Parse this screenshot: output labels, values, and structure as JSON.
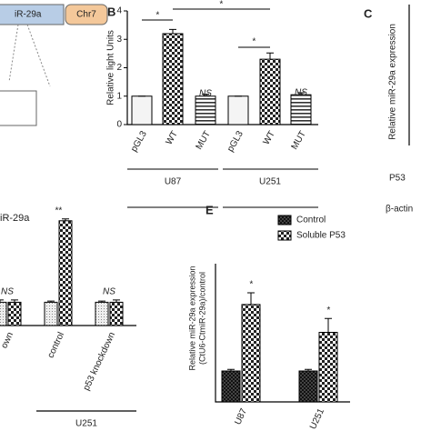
{
  "fragments": {
    "a_box": "iR-29a",
    "a_chr": "Chr7",
    "c_label": "C",
    "c_ylabel": "Relative miR-29a expression",
    "c_p53": "P53",
    "c_actin": "β-actin",
    "d_title": "iR-29a",
    "d_group": "U251"
  },
  "chart_data": [
    {
      "type": "bar",
      "label": "B",
      "y_label": "Relative light Units",
      "categories": [
        "pGL3",
        "WT",
        "MUT",
        "pGL3",
        "WT",
        "MUT"
      ],
      "values": [
        1,
        3.2,
        1.0,
        1,
        2.3,
        1.05
      ],
      "errors": [
        0,
        0.15,
        0.07,
        0,
        0.22,
        0.07
      ],
      "patterns": [
        "plain",
        "checker",
        "stripe",
        "plain",
        "checker",
        "stripe"
      ],
      "groups": [
        "U87",
        "U251"
      ],
      "annotations": [
        "*",
        "*",
        "*",
        "NS",
        "NS"
      ],
      "ylim": [
        0,
        4
      ],
      "yticks": [
        0,
        1,
        2,
        3,
        4
      ]
    },
    {
      "type": "grouped-bar",
      "label": "E",
      "y_label": [
        "Relative miR-29a expression",
        "(CtU6-CtmiR-29a)/control"
      ],
      "categories": [
        "U87",
        "U251"
      ],
      "series": [
        {
          "name": "Control",
          "pattern": "dark",
          "values": [
            1,
            1
          ],
          "errors": [
            0.05,
            0.05
          ]
        },
        {
          "name": "Soluble P53",
          "pattern": "checker",
          "values": [
            3.15,
            2.25
          ],
          "errors": [
            0.38,
            0.45
          ]
        }
      ],
      "annotations": [
        "*",
        "*"
      ],
      "ylim": [
        0,
        5
      ]
    },
    {
      "type": "grouped-bar",
      "categories": [
        "own",
        "control",
        "p53 knockdown"
      ],
      "series": [
        {
          "pattern": "dots",
          "values": [
            1,
            1,
            1
          ],
          "errors": [
            0.1,
            0.05,
            0.05
          ]
        },
        {
          "pattern": "checker",
          "values": [
            1,
            4.5,
            1
          ],
          "errors": [
            0.1,
            0.08,
            0.1
          ]
        }
      ],
      "annotations": [
        "NS",
        "**",
        "NS"
      ],
      "ylim": [
        0,
        5
      ]
    }
  ]
}
